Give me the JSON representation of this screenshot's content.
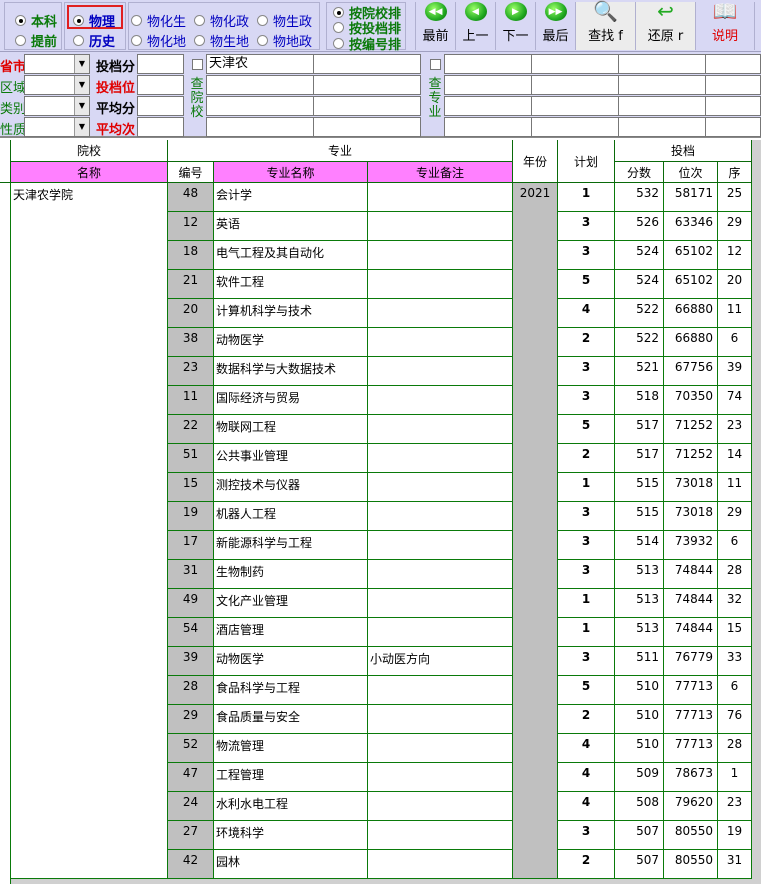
{
  "toolbar": {
    "level": [
      {
        "label": "本科",
        "checked": true
      },
      {
        "label": "提前",
        "checked": false
      }
    ],
    "subject": [
      {
        "label": "物理",
        "checked": true
      },
      {
        "label": "历史",
        "checked": false
      }
    ],
    "combos": [
      {
        "label": "物化生"
      },
      {
        "label": "物化政"
      },
      {
        "label": "物生政"
      },
      {
        "label": "物化地"
      },
      {
        "label": "物生地"
      },
      {
        "label": "物地政"
      }
    ],
    "sort": [
      {
        "label": "按院校排",
        "checked": true
      },
      {
        "label": "按投档排",
        "checked": false
      },
      {
        "label": "按编号排",
        "checked": false
      }
    ],
    "nav": [
      {
        "label": "最前",
        "icon": "first-icon"
      },
      {
        "label": "上一",
        "icon": "prev-icon"
      },
      {
        "label": "下一",
        "icon": "next-icon"
      },
      {
        "label": "最后",
        "icon": "last-icon"
      }
    ],
    "find_label": "查找 f",
    "restore_label": "还原 r",
    "help_label": "说明",
    "accent_red": "#e00000",
    "accent_green": "#0a7a0a",
    "highlight_box": "#e02020"
  },
  "filters": {
    "left_labels": [
      "省市",
      "区域",
      "类别",
      "性质"
    ],
    "mid_labels": [
      "投档分",
      "投档位",
      "平均分",
      "平均次"
    ],
    "school_search_label": "查\n院\n校",
    "school_search_value": "天津农",
    "major_search_label": "查\n专\n业"
  },
  "table": {
    "header": {
      "school": "院校",
      "major": "专业",
      "year": "年份",
      "plan": "计划",
      "admission": "投档",
      "name": "名称",
      "code": "编号",
      "major_name": "专业名称",
      "major_note": "专业备注",
      "score": "分数",
      "rank": "位次",
      "seq": "序"
    },
    "school_name": "天津农学院",
    "year": "2021",
    "rows": [
      {
        "code": "48",
        "major": "会计学",
        "note": "",
        "plan": "1",
        "score": "532",
        "rank": "58171",
        "seq": "25"
      },
      {
        "code": "12",
        "major": "英语",
        "note": "",
        "plan": "3",
        "score": "526",
        "rank": "63346",
        "seq": "29"
      },
      {
        "code": "18",
        "major": "电气工程及其自动化",
        "note": "",
        "plan": "3",
        "score": "524",
        "rank": "65102",
        "seq": "12"
      },
      {
        "code": "21",
        "major": "软件工程",
        "note": "",
        "plan": "5",
        "score": "524",
        "rank": "65102",
        "seq": "20"
      },
      {
        "code": "20",
        "major": "计算机科学与技术",
        "note": "",
        "plan": "4",
        "score": "522",
        "rank": "66880",
        "seq": "11"
      },
      {
        "code": "38",
        "major": "动物医学",
        "note": "",
        "plan": "2",
        "score": "522",
        "rank": "66880",
        "seq": "6"
      },
      {
        "code": "23",
        "major": "数据科学与大数据技术",
        "note": "",
        "plan": "3",
        "score": "521",
        "rank": "67756",
        "seq": "39"
      },
      {
        "code": "11",
        "major": "国际经济与贸易",
        "note": "",
        "plan": "3",
        "score": "518",
        "rank": "70350",
        "seq": "74"
      },
      {
        "code": "22",
        "major": "物联网工程",
        "note": "",
        "plan": "5",
        "score": "517",
        "rank": "71252",
        "seq": "23"
      },
      {
        "code": "51",
        "major": "公共事业管理",
        "note": "",
        "plan": "2",
        "score": "517",
        "rank": "71252",
        "seq": "14"
      },
      {
        "code": "15",
        "major": "测控技术与仪器",
        "note": "",
        "plan": "1",
        "score": "515",
        "rank": "73018",
        "seq": "11"
      },
      {
        "code": "19",
        "major": "机器人工程",
        "note": "",
        "plan": "3",
        "score": "515",
        "rank": "73018",
        "seq": "29"
      },
      {
        "code": "17",
        "major": "新能源科学与工程",
        "note": "",
        "plan": "3",
        "score": "514",
        "rank": "73932",
        "seq": "6"
      },
      {
        "code": "31",
        "major": "生物制药",
        "note": "",
        "plan": "3",
        "score": "513",
        "rank": "74844",
        "seq": "28"
      },
      {
        "code": "49",
        "major": "文化产业管理",
        "note": "",
        "plan": "1",
        "score": "513",
        "rank": "74844",
        "seq": "32"
      },
      {
        "code": "54",
        "major": "酒店管理",
        "note": "",
        "plan": "1",
        "score": "513",
        "rank": "74844",
        "seq": "15"
      },
      {
        "code": "39",
        "major": "动物医学",
        "note": "小动医方向",
        "plan": "3",
        "score": "511",
        "rank": "76779",
        "seq": "33"
      },
      {
        "code": "28",
        "major": "食品科学与工程",
        "note": "",
        "plan": "5",
        "score": "510",
        "rank": "77713",
        "seq": "6"
      },
      {
        "code": "29",
        "major": "食品质量与安全",
        "note": "",
        "plan": "2",
        "score": "510",
        "rank": "77713",
        "seq": "76"
      },
      {
        "code": "52",
        "major": "物流管理",
        "note": "",
        "plan": "4",
        "score": "510",
        "rank": "77713",
        "seq": "28"
      },
      {
        "code": "47",
        "major": "工程管理",
        "note": "",
        "plan": "4",
        "score": "509",
        "rank": "78673",
        "seq": "1"
      },
      {
        "code": "24",
        "major": "水利水电工程",
        "note": "",
        "plan": "4",
        "score": "508",
        "rank": "79620",
        "seq": "23"
      },
      {
        "code": "27",
        "major": "环境科学",
        "note": "",
        "plan": "3",
        "score": "507",
        "rank": "80550",
        "seq": "19"
      },
      {
        "code": "42",
        "major": "园林",
        "note": "",
        "plan": "2",
        "score": "507",
        "rank": "80550",
        "seq": "31"
      }
    ]
  }
}
